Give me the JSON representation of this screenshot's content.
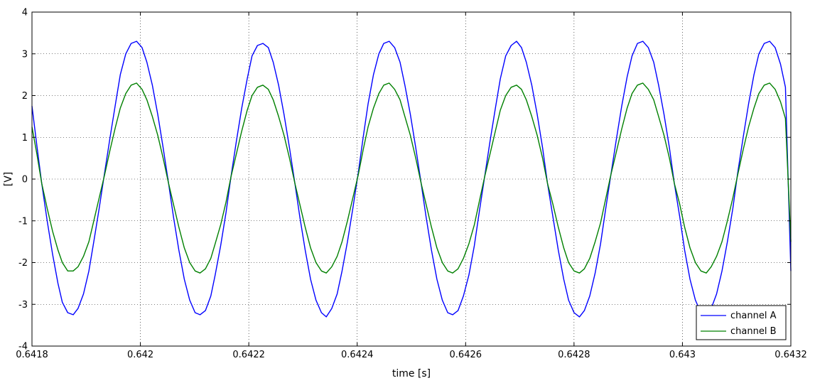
{
  "chart_data": {
    "type": "line",
    "xlabel": "time [s]",
    "ylabel": "[V]",
    "xlim": [
      0.6418,
      0.6432
    ],
    "ylim": [
      -4,
      4
    ],
    "grid": true,
    "legend_position": "bottom-right",
    "x_ticks": [
      {
        "value": 0.6418,
        "label": "0.6418"
      },
      {
        "value": 0.642,
        "label": "0.642"
      },
      {
        "value": 0.6422,
        "label": "0.6422"
      },
      {
        "value": 0.6424,
        "label": "0.6424"
      },
      {
        "value": 0.6426,
        "label": "0.6426"
      },
      {
        "value": 0.6428,
        "label": "0.6428"
      },
      {
        "value": 0.643,
        "label": "0.643"
      },
      {
        "value": 0.6432,
        "label": "0.6432"
      }
    ],
    "y_ticks": [
      {
        "value": 4,
        "label": "4"
      },
      {
        "value": 3,
        "label": "3"
      },
      {
        "value": 2,
        "label": "2"
      },
      {
        "value": 1,
        "label": "1"
      },
      {
        "value": 0,
        "label": "0"
      },
      {
        "value": -1,
        "label": "-1"
      },
      {
        "value": -2,
        "label": "-2"
      },
      {
        "value": -3,
        "label": "-3"
      },
      {
        "value": -4,
        "label": "-4"
      }
    ],
    "series": [
      {
        "name": "channel A",
        "color": "#0000ff",
        "x": [
          0.6418,
          0.641809,
          0.641818,
          0.641828,
          0.641838,
          0.641848,
          0.641856,
          0.641866,
          0.641876,
          0.641885,
          0.641895,
          0.641905,
          0.641914,
          0.641924,
          0.641934,
          0.641944,
          0.641954,
          0.641963,
          0.641973,
          0.641983,
          0.641993,
          0.642003,
          0.642012,
          0.642022,
          0.642032,
          0.642042,
          0.642052,
          0.642061,
          0.642071,
          0.642081,
          0.642091,
          0.642101,
          0.64211,
          0.64212,
          0.64213,
          0.642138,
          0.642148,
          0.642158,
          0.642167,
          0.642177,
          0.642187,
          0.642197,
          0.642206,
          0.642216,
          0.642226,
          0.642236,
          0.642245,
          0.642255,
          0.642265,
          0.642275,
          0.642285,
          0.642294,
          0.642304,
          0.642314,
          0.642324,
          0.642334,
          0.642343,
          0.642353,
          0.642363,
          0.642372,
          0.642382,
          0.642392,
          0.642402,
          0.642411,
          0.64242,
          0.64243,
          0.64244,
          0.642449,
          0.642459,
          0.642469,
          0.642479,
          0.642488,
          0.642498,
          0.642508,
          0.642518,
          0.642527,
          0.642537,
          0.642547,
          0.642557,
          0.642567,
          0.642576,
          0.642586,
          0.642596,
          0.642606,
          0.642616,
          0.642625,
          0.642635,
          0.642645,
          0.642655,
          0.642664,
          0.642674,
          0.642684,
          0.642694,
          0.642703,
          0.642712,
          0.642722,
          0.642732,
          0.642742,
          0.642751,
          0.642761,
          0.642771,
          0.642781,
          0.64279,
          0.6428,
          0.64281,
          0.642819,
          0.642829,
          0.642839,
          0.642849,
          0.642858,
          0.642868,
          0.642878,
          0.642888,
          0.642898,
          0.642907,
          0.642917,
          0.642927,
          0.642937,
          0.642947,
          0.642956,
          0.642966,
          0.642976,
          0.642985,
          0.642995,
          0.643004,
          0.643014,
          0.643024,
          0.643034,
          0.643044,
          0.643053,
          0.643063,
          0.643073,
          0.643083,
          0.643093,
          0.643102,
          0.643112,
          0.643122,
          0.643132,
          0.643141,
          0.643151,
          0.643161,
          0.643171,
          0.643181,
          0.64319,
          0.6432
        ],
        "y": [
          1.75,
          0.8,
          -0.1,
          -1.0,
          -1.8,
          -2.5,
          -2.95,
          -3.2,
          -3.25,
          -3.1,
          -2.75,
          -2.2,
          -1.5,
          -0.7,
          0.15,
          1.0,
          1.8,
          2.5,
          3.0,
          3.25,
          3.3,
          3.15,
          2.8,
          2.25,
          1.55,
          0.75,
          -0.1,
          -0.9,
          -1.7,
          -2.4,
          -2.9,
          -3.2,
          -3.25,
          -3.15,
          -2.8,
          -2.3,
          -1.6,
          -0.8,
          0.05,
          0.9,
          1.7,
          2.4,
          2.95,
          3.2,
          3.25,
          3.15,
          2.8,
          2.25,
          1.55,
          0.75,
          -0.1,
          -0.9,
          -1.7,
          -2.4,
          -2.9,
          -3.2,
          -3.3,
          -3.1,
          -2.75,
          -2.2,
          -1.5,
          -0.7,
          0.15,
          1.0,
          1.8,
          2.5,
          3.0,
          3.25,
          3.3,
          3.15,
          2.8,
          2.25,
          1.55,
          0.75,
          -0.1,
          -0.9,
          -1.7,
          -2.4,
          -2.9,
          -3.2,
          -3.25,
          -3.15,
          -2.8,
          -2.3,
          -1.6,
          -0.8,
          0.05,
          0.9,
          1.7,
          2.4,
          2.95,
          3.2,
          3.3,
          3.15,
          2.8,
          2.25,
          1.55,
          0.75,
          -0.1,
          -0.9,
          -1.7,
          -2.4,
          -2.9,
          -3.2,
          -3.3,
          -3.15,
          -2.8,
          -2.25,
          -1.55,
          -0.75,
          0.1,
          0.95,
          1.75,
          2.45,
          2.95,
          3.25,
          3.3,
          3.15,
          2.8,
          2.25,
          1.55,
          0.75,
          -0.1,
          -0.9,
          -1.7,
          -2.4,
          -2.9,
          -3.2,
          -3.3,
          -3.1,
          -2.75,
          -2.2,
          -1.5,
          -0.7,
          0.15,
          1.0,
          1.8,
          2.5,
          3.0,
          3.25,
          3.3,
          3.15,
          2.75,
          2.2,
          -2.2
        ]
      },
      {
        "name": "channel B",
        "color": "#008000",
        "x": [
          0.6418,
          0.641809,
          0.641818,
          0.641828,
          0.641838,
          0.641848,
          0.641856,
          0.641866,
          0.641876,
          0.641885,
          0.641895,
          0.641905,
          0.641914,
          0.641924,
          0.641934,
          0.641944,
          0.641954,
          0.641963,
          0.641973,
          0.641983,
          0.641993,
          0.642003,
          0.642012,
          0.642022,
          0.642032,
          0.642042,
          0.642052,
          0.642061,
          0.642071,
          0.642081,
          0.642091,
          0.642101,
          0.64211,
          0.64212,
          0.64213,
          0.642138,
          0.642148,
          0.642158,
          0.642167,
          0.642177,
          0.642187,
          0.642197,
          0.642206,
          0.642216,
          0.642226,
          0.642236,
          0.642245,
          0.642255,
          0.642265,
          0.642275,
          0.642285,
          0.642294,
          0.642304,
          0.642314,
          0.642324,
          0.642334,
          0.642343,
          0.642353,
          0.642363,
          0.642372,
          0.642382,
          0.642392,
          0.642402,
          0.642411,
          0.64242,
          0.64243,
          0.64244,
          0.642449,
          0.642459,
          0.642469,
          0.642479,
          0.642488,
          0.642498,
          0.642508,
          0.642518,
          0.642527,
          0.642537,
          0.642547,
          0.642557,
          0.642567,
          0.642576,
          0.642586,
          0.642596,
          0.642606,
          0.642616,
          0.642625,
          0.642635,
          0.642645,
          0.642655,
          0.642664,
          0.642674,
          0.642684,
          0.642694,
          0.642703,
          0.642712,
          0.642722,
          0.642732,
          0.642742,
          0.642751,
          0.642761,
          0.642771,
          0.642781,
          0.64279,
          0.6428,
          0.64281,
          0.642819,
          0.642829,
          0.642839,
          0.642849,
          0.642858,
          0.642868,
          0.642878,
          0.642888,
          0.642898,
          0.642907,
          0.642917,
          0.642927,
          0.642937,
          0.642947,
          0.642956,
          0.642966,
          0.642976,
          0.642985,
          0.642995,
          0.643004,
          0.643014,
          0.643024,
          0.643034,
          0.643044,
          0.643053,
          0.643063,
          0.643073,
          0.643083,
          0.643093,
          0.643102,
          0.643112,
          0.643122,
          0.643132,
          0.643141,
          0.643151,
          0.643161,
          0.643171,
          0.643181,
          0.64319,
          0.6432
        ],
        "y": [
          1.25,
          0.6,
          -0.1,
          -0.7,
          -1.25,
          -1.7,
          -2.0,
          -2.2,
          -2.2,
          -2.1,
          -1.85,
          -1.5,
          -1.0,
          -0.45,
          0.1,
          0.7,
          1.25,
          1.7,
          2.05,
          2.25,
          2.3,
          2.15,
          1.9,
          1.5,
          1.05,
          0.5,
          -0.1,
          -0.6,
          -1.15,
          -1.65,
          -2.0,
          -2.2,
          -2.25,
          -2.15,
          -1.9,
          -1.55,
          -1.1,
          -0.55,
          0.05,
          0.6,
          1.15,
          1.65,
          2.0,
          2.2,
          2.25,
          2.15,
          1.9,
          1.5,
          1.05,
          0.5,
          -0.1,
          -0.6,
          -1.15,
          -1.65,
          -2.0,
          -2.2,
          -2.25,
          -2.1,
          -1.85,
          -1.5,
          -1.0,
          -0.45,
          0.1,
          0.7,
          1.25,
          1.7,
          2.05,
          2.25,
          2.3,
          2.15,
          1.9,
          1.5,
          1.05,
          0.5,
          -0.1,
          -0.6,
          -1.15,
          -1.65,
          -2.0,
          -2.2,
          -2.25,
          -2.15,
          -1.9,
          -1.55,
          -1.1,
          -0.55,
          0.05,
          0.6,
          1.15,
          1.65,
          2.0,
          2.2,
          2.25,
          2.15,
          1.9,
          1.5,
          1.05,
          0.5,
          -0.1,
          -0.6,
          -1.15,
          -1.65,
          -2.0,
          -2.2,
          -2.25,
          -2.15,
          -1.9,
          -1.5,
          -1.05,
          -0.5,
          0.1,
          0.65,
          1.2,
          1.7,
          2.05,
          2.25,
          2.3,
          2.15,
          1.9,
          1.5,
          1.05,
          0.5,
          -0.1,
          -0.6,
          -1.15,
          -1.65,
          -2.0,
          -2.2,
          -2.25,
          -2.1,
          -1.85,
          -1.5,
          -1.0,
          -0.45,
          0.1,
          0.7,
          1.25,
          1.7,
          2.05,
          2.25,
          2.3,
          2.15,
          1.85,
          1.45,
          -1.5
        ]
      }
    ]
  }
}
